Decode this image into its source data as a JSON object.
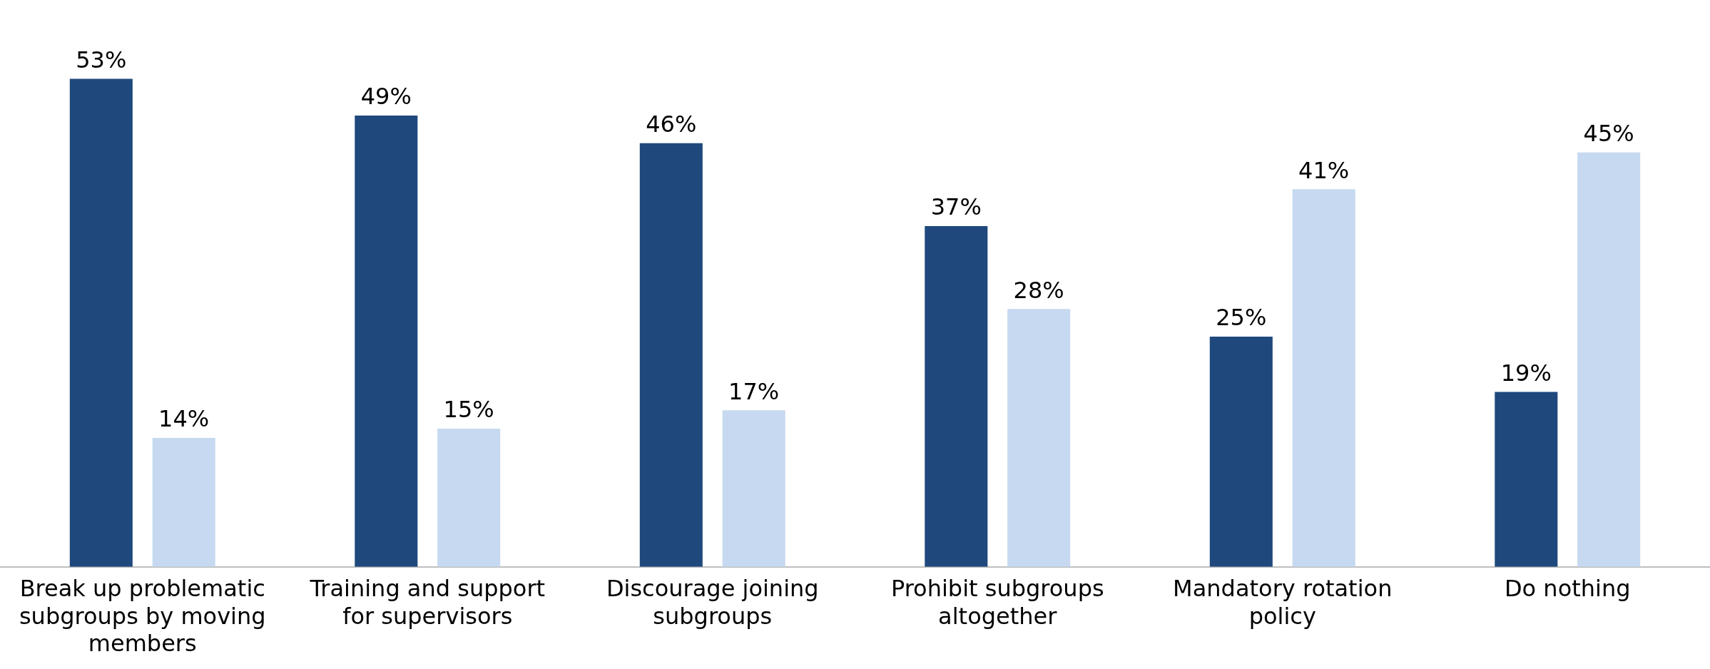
{
  "chart_data": {
    "type": "bar",
    "categories": [
      "Break up problematic subgroups by moving members",
      "Training and support for supervisors",
      "Discourage joining subgroups",
      "Prohibit subgroups altogether",
      "Mandatory rotation policy",
      "Do nothing"
    ],
    "series": [
      {
        "color": "#1f497d",
        "values": [
          53,
          49,
          46,
          37,
          25,
          19
        ],
        "value_labels": [
          "53%",
          "49%",
          "46%",
          "37%",
          "25%",
          "19%"
        ]
      },
      {
        "color": "#c6d9f0",
        "values": [
          14,
          15,
          17,
          28,
          41,
          45
        ],
        "value_labels": [
          "14%",
          "15%",
          "17%",
          "28%",
          "41%",
          "45%"
        ]
      }
    ],
    "legend": false,
    "grid": false
  }
}
